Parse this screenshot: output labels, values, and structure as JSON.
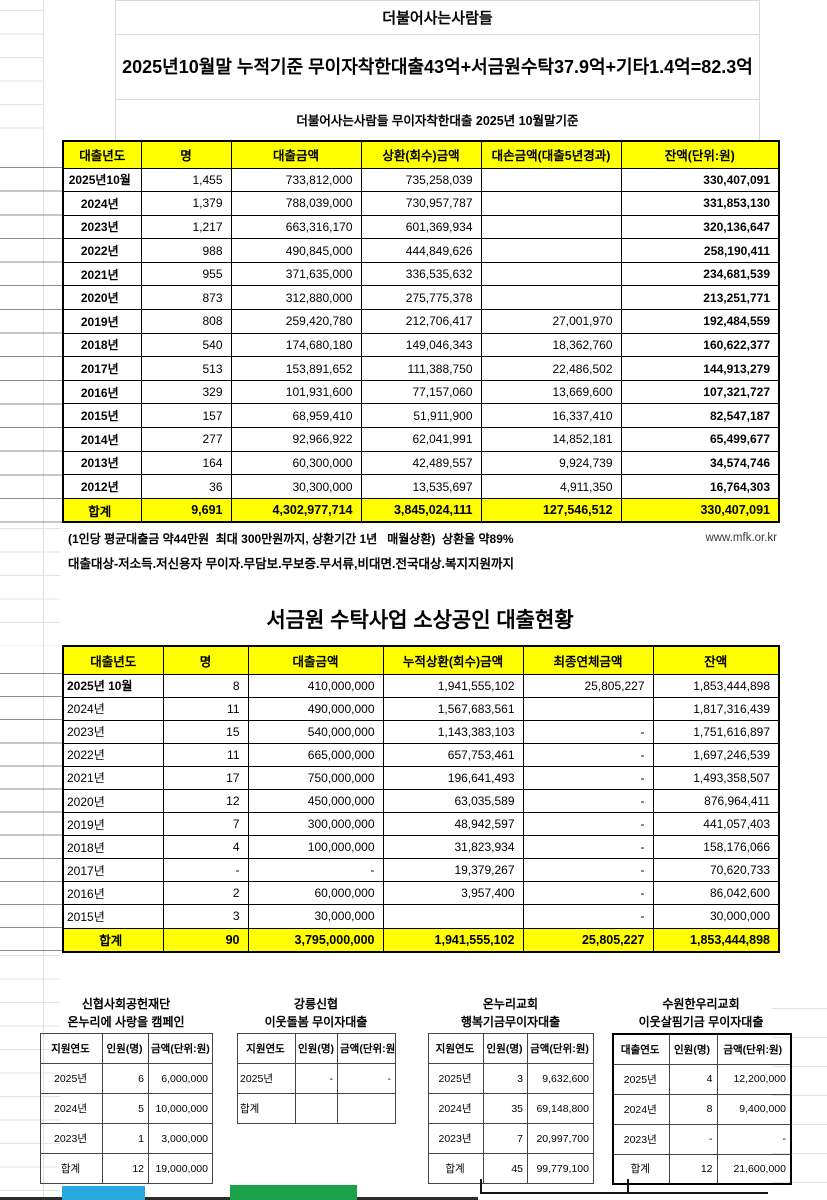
{
  "page": {
    "title": "더불어사는사람들",
    "subtitle": "2025년10월말 누적기준 무이자착한대출43억+서금원수탁37.9억+기타1.4억=82.3억"
  },
  "colors": {
    "header_yellow": "#ffff00",
    "bar_blue": "#29a7df",
    "bar_green": "#1aa24b"
  },
  "table1": {
    "caption": "더불어사는사람들 무이자착한대출 2025년 10월말기준",
    "headers": [
      "대출년도",
      "명",
      "대출금액",
      "상환(회수)금액",
      "대손금액(대출5년경과)",
      "잔액(단위:원)"
    ],
    "rows": [
      [
        "2025년10월",
        "1,455",
        "733,812,000",
        "735,258,039",
        "",
        "330,407,091"
      ],
      [
        "2024년",
        "1,379",
        "788,039,000",
        "730,957,787",
        "",
        "331,853,130"
      ],
      [
        "2023년",
        "1,217",
        "663,316,170",
        "601,369,934",
        "",
        "320,136,647"
      ],
      [
        "2022년",
        "988",
        "490,845,000",
        "444,849,626",
        "",
        "258,190,411"
      ],
      [
        "2021년",
        "955",
        "371,635,000",
        "336,535,632",
        "",
        "234,681,539"
      ],
      [
        "2020년",
        "873",
        "312,880,000",
        "275,775,378",
        "",
        "213,251,771"
      ],
      [
        "2019년",
        "808",
        "259,420,780",
        "212,706,417",
        "27,001,970",
        "192,484,559"
      ],
      [
        "2018년",
        "540",
        "174,680,180",
        "149,046,343",
        "18,362,760",
        "160,622,377"
      ],
      [
        "2017년",
        "513",
        "153,891,652",
        "111,388,750",
        "22,486,502",
        "144,913,279"
      ],
      [
        "2016년",
        "329",
        "101,931,600",
        "77,157,060",
        "13,669,600",
        "107,321,727"
      ],
      [
        "2015년",
        "157",
        "68,959,410",
        "51,911,900",
        "16,337,410",
        "82,547,187"
      ],
      [
        "2014년",
        "277",
        "92,966,922",
        "62,041,991",
        "14,852,181",
        "65,499,677"
      ],
      [
        "2013년",
        "164",
        "60,300,000",
        "42,489,557",
        "9,924,739",
        "34,574,746"
      ],
      [
        "2012년",
        "36",
        "30,300,000",
        "13,535,697",
        "4,911,350",
        "16,764,303"
      ]
    ],
    "total": [
      "합계",
      "9,691",
      "4,302,977,714",
      "3,845,024,111",
      "127,546,512",
      "330,407,091"
    ],
    "note1": "(1인당 평균대출금 약44만원  최대 300만원까지, 상환기간 1년   매월상환)  상환율 약89%",
    "website": "www.mfk.or.kr",
    "note2": "대출대상-저소득.저신용자 무이자.무담보.무보증.무서류,비대면.전국대상.복지지원까지"
  },
  "table2": {
    "title": "서금원 수탁사업 소상공인 대출현황",
    "headers": [
      "대출년도",
      "명",
      "대출금액",
      "누적상환(회수)금액",
      "최종연체금액",
      "잔액"
    ],
    "rows": [
      [
        "2025년 10월",
        "8",
        "410,000,000",
        "1,941,555,102",
        "25,805,227",
        "1,853,444,898"
      ],
      [
        "2024년",
        "11",
        "490,000,000",
        "1,567,683,561",
        "",
        "1,817,316,439"
      ],
      [
        "2023년",
        "15",
        "540,000,000",
        "1,143,383,103",
        "-",
        "1,751,616,897"
      ],
      [
        "2022년",
        "11",
        "665,000,000",
        "657,753,461",
        "-",
        "1,697,246,539"
      ],
      [
        "2021년",
        "17",
        "750,000,000",
        "196,641,493",
        "-",
        "1,493,358,507"
      ],
      [
        "2020년",
        "12",
        "450,000,000",
        "63,035,589",
        "-",
        "876,964,411"
      ],
      [
        "2019년",
        "7",
        "300,000,000",
        "48,942,597",
        "-",
        "441,057,403"
      ],
      [
        "2018년",
        "4",
        "100,000,000",
        "31,823,934",
        "-",
        "158,176,066"
      ],
      [
        "2017년",
        "-",
        "-",
        "19,379,267",
        "-",
        "70,620,733"
      ],
      [
        "2016년",
        "2",
        "60,000,000",
        "3,957,400",
        "-",
        "86,042,600"
      ],
      [
        "2015년",
        "3",
        "30,000,000",
        "",
        "-",
        "30,000,000"
      ]
    ],
    "total": [
      "합계",
      "90",
      "3,795,000,000",
      "1,941,555,102",
      "25,805,227",
      "1,853,444,898"
    ]
  },
  "mini_tables": [
    {
      "title1": "신협사회공헌재단",
      "title2": "온누리에 사랑을 캠페인",
      "headers": [
        "지원연도",
        "인원(명)",
        "금액(단위:원)"
      ],
      "rows": [
        [
          "2025년",
          "6",
          "6,000,000"
        ],
        [
          "2024년",
          "5",
          "10,000,000"
        ],
        [
          "2023년",
          "1",
          "3,000,000"
        ],
        [
          "합계",
          "12",
          "19,000,000"
        ]
      ]
    },
    {
      "title1": "강릉신협",
      "title2": "이웃돌봄 무이자대출",
      "headers": [
        "지원연도",
        "인원(명)",
        "금액(단위:원)"
      ],
      "rows": [
        [
          "2025년",
          "-",
          "-"
        ],
        [
          "합계",
          "",
          ""
        ]
      ]
    },
    {
      "title1": "온누리교회",
      "title2": "행복기금무이자대출",
      "headers": [
        "지원연도",
        "인원(명)",
        "금액(단위:원)"
      ],
      "rows": [
        [
          "2025년",
          "3",
          "9,632,600"
        ],
        [
          "2024년",
          "35",
          "69,148,800"
        ],
        [
          "2023년",
          "7",
          "20,997,700"
        ],
        [
          "합계",
          "45",
          "99,779,100"
        ]
      ]
    },
    {
      "title1": "수원한우리교회",
      "title2": "이웃살핌기금 무이자대출",
      "headers": [
        "대출연도",
        "인원(명)",
        "금액(단위:원)"
      ],
      "rows": [
        [
          "2025년",
          "4",
          "12,200,000"
        ],
        [
          "2024년",
          "8",
          "9,400,000"
        ],
        [
          "2023년",
          "-",
          "-"
        ],
        [
          "합계",
          "12",
          "21,600,000"
        ]
      ]
    }
  ]
}
